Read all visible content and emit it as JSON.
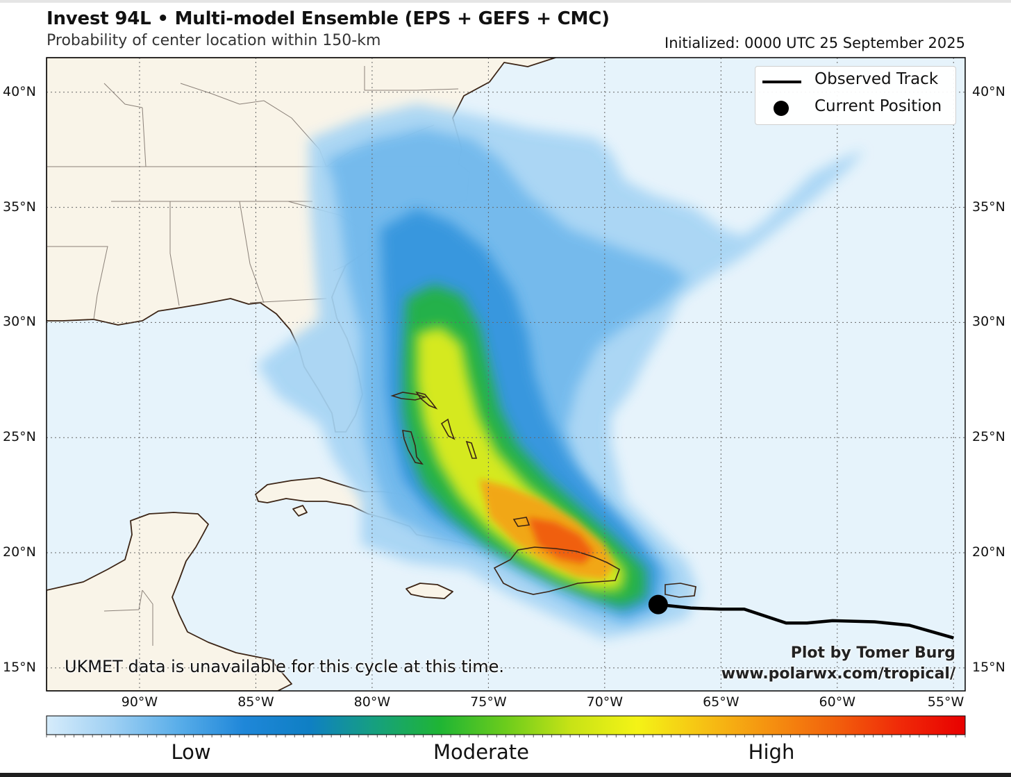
{
  "header": {
    "title": "Invest 94L • Multi-model Ensemble (EPS + GEFS + CMC)",
    "subtitle": "Probability of center location within 150-km",
    "initialized": "Initialized: 0000 UTC 25 September 2025"
  },
  "map": {
    "lon_range": [
      -94,
      -54.5
    ],
    "lat_range": [
      14,
      41.5
    ],
    "lat_ticks": [
      {
        "value": 40,
        "label": "40°N"
      },
      {
        "value": 35,
        "label": "35°N"
      },
      {
        "value": 30,
        "label": "30°N"
      },
      {
        "value": 25,
        "label": "25°N"
      },
      {
        "value": 20,
        "label": "20°N"
      },
      {
        "value": 15,
        "label": "15°N"
      }
    ],
    "lon_ticks": [
      {
        "value": -90,
        "label": "90°W"
      },
      {
        "value": -85,
        "label": "85°W"
      },
      {
        "value": -80,
        "label": "80°W"
      },
      {
        "value": -75,
        "label": "75°W"
      },
      {
        "value": -70,
        "label": "70°W"
      },
      {
        "value": -65,
        "label": "65°W"
      },
      {
        "value": -60,
        "label": "60°W"
      },
      {
        "value": -55,
        "label": "55°W"
      }
    ],
    "observed_track": [
      [
        -55.0,
        16.3
      ],
      [
        -56.9,
        16.85
      ],
      [
        -58.4,
        17.0
      ],
      [
        -60.2,
        17.05
      ],
      [
        -61.3,
        16.95
      ],
      [
        -62.2,
        16.95
      ],
      [
        -64.0,
        17.55
      ],
      [
        -65.0,
        17.55
      ],
      [
        -66.3,
        17.6
      ],
      [
        -67.7,
        17.75
      ]
    ],
    "current_position": {
      "lon": -67.7,
      "lat": 17.75
    },
    "colors": {
      "ocean": "#e6f3fb",
      "land": "#f9f4e8",
      "coast": "#3b2415",
      "border": "#8a8078",
      "track": "#000000"
    }
  },
  "legend": {
    "track_label": "Observed Track",
    "position_label": "Current Position"
  },
  "note": "UKMET data is unavailable for this cycle at this time.",
  "credit": {
    "line1": "Plot by Tomer Burg",
    "line2": "www.polarwx.com/tropical/"
  },
  "colorbar": {
    "labels": [
      "Low",
      "Moderate",
      "High"
    ],
    "colors": [
      "#d6ecfb",
      "#9fd0f3",
      "#5aaee9",
      "#1f87d9",
      "#0f7fc4",
      "#16a07f",
      "#1fb534",
      "#6ccc1c",
      "#c8e316",
      "#f4f316",
      "#f6c214",
      "#f59210",
      "#f2620c",
      "#f02a08",
      "#e80000"
    ]
  }
}
